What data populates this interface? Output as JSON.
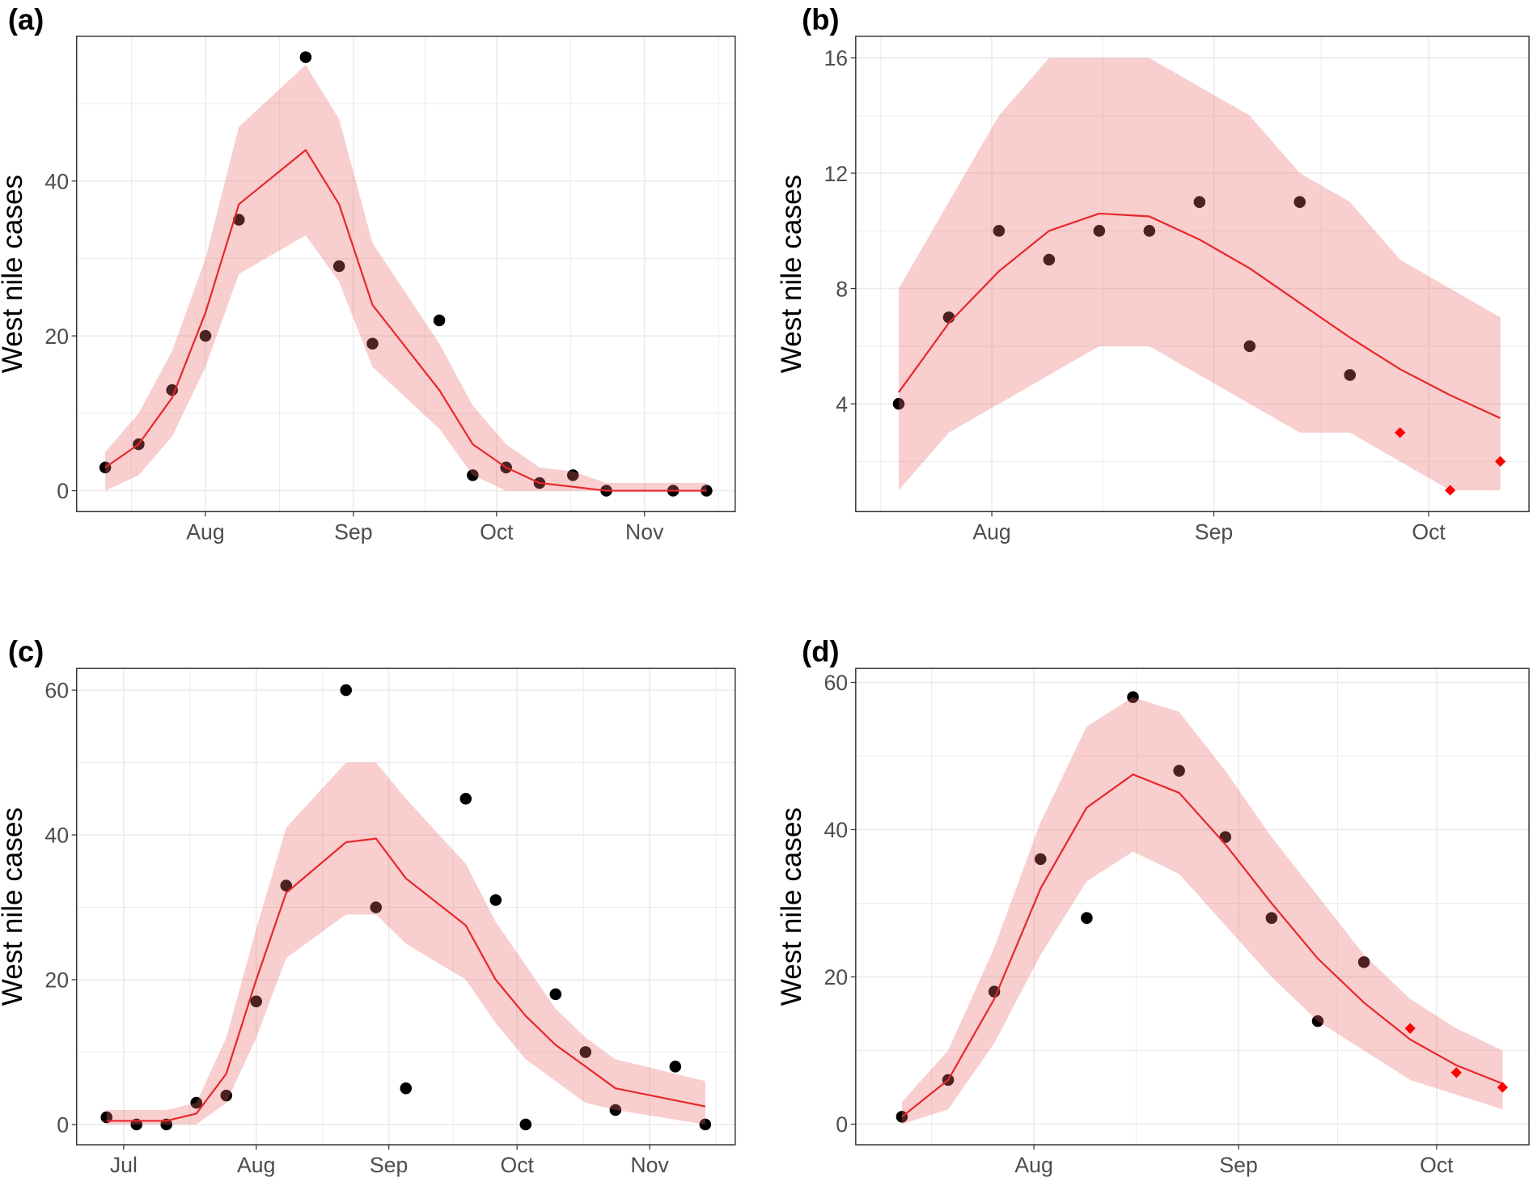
{
  "chart_data": [
    {
      "panel_label": "(a)",
      "type": "line",
      "ylabel": "West nile cases",
      "xlim": [
        "07-05",
        "11-20"
      ],
      "ylim": [
        -2.7,
        58.7
      ],
      "y_ticks": [
        0,
        20,
        40
      ],
      "y_minor": [
        10,
        30,
        50
      ],
      "x_ticks": [
        {
          "label": "Aug",
          "date": "08-01"
        },
        {
          "label": "Sep",
          "date": "09-01"
        },
        {
          "label": "Oct",
          "date": "10-01"
        },
        {
          "label": "Nov",
          "date": "11-01"
        }
      ],
      "grid": true,
      "observed": {
        "x": [
          "07-11",
          "07-18",
          "07-25",
          "08-01",
          "08-08",
          "08-22",
          "08-29",
          "09-05",
          "09-19",
          "09-26",
          "10-03",
          "10-10",
          "10-17",
          "10-24",
          "11-07",
          "11-14"
        ],
        "y": [
          3,
          6,
          13,
          20,
          35,
          56,
          29,
          19,
          22,
          2,
          3,
          1,
          2,
          0,
          0,
          0
        ]
      },
      "forecast": {
        "x": [],
        "y": []
      },
      "fitted": {
        "x": [
          "07-11",
          "07-18",
          "07-25",
          "08-01",
          "08-08",
          "08-22",
          "08-29",
          "09-05",
          "09-19",
          "09-26",
          "10-03",
          "10-10",
          "10-17",
          "10-24",
          "11-07",
          "11-14"
        ],
        "y": [
          3,
          6,
          12,
          23,
          37,
          44,
          37,
          24,
          13,
          6,
          3,
          1,
          0.5,
          0,
          0,
          0
        ],
        "lower": [
          0,
          2,
          7,
          16,
          28,
          33,
          27,
          16,
          8,
          2,
          0,
          0,
          0,
          0,
          0,
          0
        ],
        "upper": [
          5,
          10,
          18,
          30,
          47,
          55,
          48,
          32,
          19,
          11,
          6,
          3,
          2.5,
          1,
          1,
          1
        ]
      }
    },
    {
      "panel_label": "(b)",
      "type": "line",
      "ylabel": "West nile cases",
      "xlim": [
        "07-13",
        "10-15"
      ],
      "ylim": [
        0.26,
        16.75
      ],
      "y_ticks": [
        4,
        8,
        12,
        16
      ],
      "y_minor": [
        2,
        6,
        10,
        14
      ],
      "x_ticks": [
        {
          "label": "Aug",
          "date": "08-01"
        },
        {
          "label": "Sep",
          "date": "09-01"
        },
        {
          "label": "Oct",
          "date": "10-01"
        }
      ],
      "grid": true,
      "observed": {
        "x": [
          "07-19",
          "07-26",
          "08-02",
          "08-09",
          "08-16",
          "08-23",
          "08-30",
          "09-06",
          "09-13",
          "09-20"
        ],
        "y": [
          4,
          7,
          10,
          9,
          10,
          10,
          11,
          6,
          11,
          5
        ]
      },
      "forecast": {
        "x": [
          "09-27",
          "10-04",
          "10-11"
        ],
        "y": [
          3,
          1,
          2
        ]
      },
      "fitted": {
        "x": [
          "07-19",
          "07-26",
          "08-02",
          "08-09",
          "08-16",
          "08-23",
          "08-30",
          "09-06",
          "09-13",
          "09-20",
          "09-27",
          "10-04",
          "10-11"
        ],
        "y": [
          4.4,
          6.8,
          8.6,
          10,
          10.6,
          10.5,
          9.7,
          8.7,
          7.5,
          6.3,
          5.2,
          4.3,
          3.5
        ],
        "lower": [
          1,
          3,
          4,
          5,
          6,
          6,
          5,
          4,
          3,
          3,
          2,
          1,
          1
        ],
        "upper": [
          8,
          11,
          14,
          16,
          16,
          16,
          15,
          14,
          12,
          11,
          9,
          8,
          7
        ]
      }
    },
    {
      "panel_label": "(c)",
      "type": "line",
      "ylabel": "West nile cases",
      "xlim": [
        "06-20",
        "11-21"
      ],
      "ylim": [
        -2.8,
        63
      ],
      "y_ticks": [
        0,
        20,
        40,
        60
      ],
      "y_minor": [
        10,
        30,
        50
      ],
      "x_ticks": [
        {
          "label": "Jul",
          "date": "07-01"
        },
        {
          "label": "Aug",
          "date": "08-01"
        },
        {
          "label": "Sep",
          "date": "09-01"
        },
        {
          "label": "Oct",
          "date": "10-01"
        },
        {
          "label": "Nov",
          "date": "11-01"
        }
      ],
      "grid": true,
      "observed": {
        "x": [
          "06-27",
          "07-04",
          "07-11",
          "07-18",
          "07-25",
          "08-01",
          "08-08",
          "08-22",
          "08-29",
          "09-05",
          "09-19",
          "09-26",
          "10-03",
          "10-10",
          "10-17",
          "10-24",
          "11-07",
          "11-14"
        ],
        "y": [
          1,
          0,
          0,
          3,
          4,
          17,
          33,
          60,
          30,
          5,
          45,
          31,
          0,
          18,
          10,
          2,
          8,
          0
        ]
      },
      "forecast": {
        "x": [],
        "y": []
      },
      "fitted": {
        "x": [
          "06-27",
          "07-04",
          "07-11",
          "07-18",
          "07-25",
          "08-01",
          "08-08",
          "08-22",
          "08-29",
          "09-05",
          "09-19",
          "09-26",
          "10-03",
          "10-10",
          "10-17",
          "10-24",
          "11-14"
        ],
        "y": [
          0.5,
          0.5,
          0.5,
          1.5,
          7,
          20,
          32,
          39,
          39.5,
          34,
          27.5,
          20,
          15,
          11,
          8,
          5,
          2.5
        ],
        "lower": [
          0,
          0,
          0,
          0,
          3,
          12,
          23,
          29,
          29,
          25,
          20,
          14,
          9,
          6,
          3,
          2,
          0
        ],
        "upper": [
          2,
          2,
          2,
          3,
          12,
          27,
          41,
          50,
          50,
          45,
          36,
          28,
          22,
          16,
          12,
          9,
          6
        ]
      }
    },
    {
      "panel_label": "(d)",
      "type": "line",
      "ylabel": "West nile cases",
      "xlim": [
        "07-05",
        "10-15"
      ],
      "ylim": [
        -2.8,
        61.9
      ],
      "y_ticks": [
        0,
        20,
        40,
        60
      ],
      "y_minor": [
        10,
        30,
        50
      ],
      "x_ticks": [
        {
          "label": "Aug",
          "date": "08-01"
        },
        {
          "label": "Sep",
          "date": "09-01"
        },
        {
          "label": "Oct",
          "date": "10-01"
        }
      ],
      "grid": true,
      "observed": {
        "x": [
          "07-12",
          "07-19",
          "07-26",
          "08-02",
          "08-09",
          "08-16",
          "08-23",
          "08-30",
          "09-06",
          "09-13",
          "09-20"
        ],
        "y": [
          1,
          6,
          18,
          36,
          28,
          58,
          48,
          39,
          28,
          14,
          22
        ]
      },
      "forecast": {
        "x": [
          "09-27",
          "10-04",
          "10-11"
        ],
        "y": [
          13,
          7,
          5
        ]
      },
      "fitted": {
        "x": [
          "07-12",
          "07-19",
          "07-26",
          "08-02",
          "08-09",
          "08-16",
          "08-23",
          "08-30",
          "09-06",
          "09-13",
          "09-20",
          "09-27",
          "10-04",
          "10-11"
        ],
        "y": [
          1,
          6,
          17,
          32,
          43,
          47.5,
          45,
          38,
          30,
          22.5,
          16.5,
          11.5,
          8,
          5.5
        ],
        "lower": [
          0,
          2,
          11,
          23,
          33,
          37,
          34,
          27,
          20,
          14,
          10,
          6,
          4,
          2
        ],
        "upper": [
          3,
          10,
          24,
          41,
          54,
          58,
          56,
          48,
          39,
          31,
          23,
          17,
          13,
          10
        ]
      }
    }
  ],
  "colors": {
    "observed": "#000000",
    "forecast": "#ff0000",
    "fitted_line": "#e8262a",
    "interval_fill": "#ea6767",
    "grid": "#ebebeb",
    "panel_border": "#333333"
  }
}
